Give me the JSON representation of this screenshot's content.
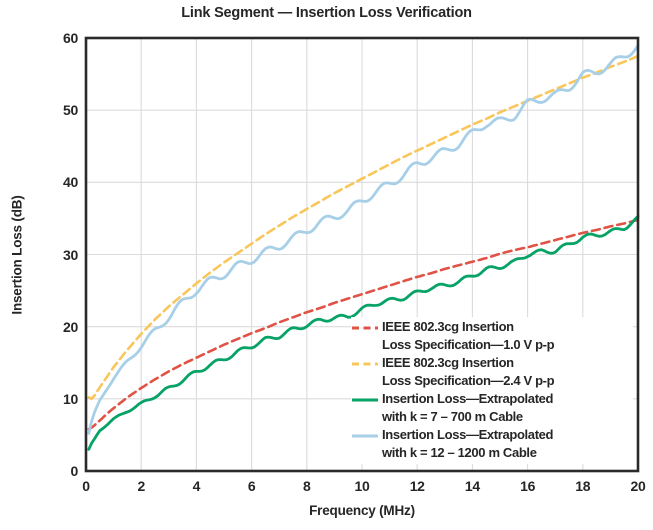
{
  "title": "Link Segment — Insertion Loss Verification",
  "x_axis": {
    "label": "Frequency (MHz)",
    "ticks": [
      0,
      2,
      4,
      6,
      8,
      10,
      12,
      14,
      16,
      18,
      20
    ]
  },
  "y_axis": {
    "label": "Insertion Loss (dB)",
    "ticks": [
      0,
      10,
      20,
      30,
      40,
      50,
      60
    ]
  },
  "colors": {
    "spec_1v0_red": "#e05246",
    "spec_2v4_yellow": "#f8c65a",
    "cable_700m_green": "#06a266",
    "cable_1200m_blue": "#a8cfe8",
    "grid": "#dbdbdb",
    "frame": "#2a2a2a",
    "text": "#262626"
  },
  "legend": {
    "position": "inside-bottom-right",
    "entries": [
      {
        "line1": "IEEE 802.3cg Insertion",
        "line2": "Loss Specification—1.0 V p-p",
        "color": "#e05246",
        "dash": true
      },
      {
        "line1": "IEEE 802.3cg Insertion",
        "line2": "Loss Specification—2.4 V p-p",
        "color": "#f8c65a",
        "dash": true
      },
      {
        "line1": "Insertion Loss—Extrapolated",
        "line2": "with k = 7 – 700 m Cable",
        "color": "#06a266",
        "dash": false
      },
      {
        "line1": "Insertion Loss—Extrapolated",
        "line2": "with k = 12 – 1200 m Cable",
        "color": "#a8cfe8",
        "dash": false
      }
    ]
  },
  "chart_data": {
    "type": "line",
    "title": "Link Segment — Insertion Loss Verification",
    "xlabel": "Frequency (MHz)",
    "ylabel": "Insertion Loss (dB)",
    "xlim": [
      0,
      20
    ],
    "ylim": [
      0,
      60
    ],
    "grid": true,
    "x": [
      0.1,
      0.2,
      0.3,
      0.5,
      0.75,
      1,
      1.5,
      2,
      2.5,
      3,
      3.5,
      4,
      4.5,
      5,
      5.5,
      6,
      6.5,
      7,
      7.5,
      8,
      8.5,
      9,
      9.5,
      10,
      10.5,
      11,
      11.5,
      12,
      12.5,
      13,
      13.5,
      14,
      14.5,
      15,
      15.5,
      16,
      16.5,
      17,
      17.5,
      18,
      18.5,
      19,
      19.5,
      20
    ],
    "series": [
      {
        "name": "IEEE 802.3cg Insertion Loss Specification—1.0 V p-p",
        "color": "#e05246",
        "style": "dashed",
        "width": 2.6,
        "values": [
          5.8,
          6.0,
          6.3,
          7.0,
          7.9,
          8.7,
          10.2,
          11.5,
          12.7,
          13.8,
          14.8,
          15.7,
          16.6,
          17.5,
          18.3,
          19.1,
          19.8,
          20.6,
          21.3,
          22.0,
          22.6,
          23.3,
          23.9,
          24.5,
          25.1,
          25.7,
          26.3,
          26.9,
          27.4,
          28.0,
          28.5,
          29.0,
          29.5,
          30.1,
          30.6,
          31.0,
          31.5,
          32.0,
          32.5,
          33.0,
          33.4,
          33.9,
          34.3,
          34.8
        ]
      },
      {
        "name": "IEEE 802.3cg Insertion Loss Specification—2.4 V p-p",
        "color": "#f8c65a",
        "style": "dashed",
        "width": 2.6,
        "values": [
          10.2,
          10.0,
          10.4,
          11.6,
          13.0,
          14.4,
          16.8,
          19.0,
          21.0,
          22.8,
          24.4,
          26.0,
          27.5,
          28.9,
          30.2,
          31.5,
          32.8,
          34.0,
          35.2,
          36.3,
          37.4,
          38.5,
          39.5,
          40.5,
          41.5,
          42.5,
          43.5,
          44.4,
          45.3,
          46.2,
          47.1,
          48.0,
          48.8,
          49.7,
          50.5,
          51.3,
          52.1,
          52.9,
          53.7,
          54.5,
          55.2,
          56.0,
          56.7,
          57.5
        ]
      },
      {
        "name": "Insertion Loss—Extrapolated with k = 7 – 700 m Cable",
        "color": "#06a266",
        "style": "solid",
        "width": 2.8,
        "ripple": {
          "amplitude": 0.3,
          "period": 0.9
        },
        "values": [
          3.0,
          3.8,
          4.4,
          5.6,
          6.4,
          7.2,
          8.3,
          9.3,
          10.4,
          11.4,
          12.6,
          13.7,
          14.7,
          15.5,
          16.5,
          17.3,
          18.2,
          18.7,
          19.6,
          20.2,
          20.9,
          21.2,
          21.4,
          22.4,
          23.2,
          23.6,
          24.0,
          24.7,
          25.4,
          25.7,
          26.2,
          27.1,
          27.9,
          28.3,
          28.9,
          30.0,
          30.4,
          30.5,
          31.4,
          32.4,
          32.7,
          33.1,
          33.7,
          35.0
        ]
      },
      {
        "name": "Insertion Loss—Extrapolated with k = 12 – 1200 m Cable",
        "color": "#a8cfe8",
        "style": "solid",
        "width": 2.8,
        "ripple": {
          "amplitude": 0.55,
          "period": 1.05
        },
        "values": [
          5.2,
          6.8,
          8.0,
          9.8,
          11.4,
          12.8,
          15.2,
          17.3,
          19.4,
          21.4,
          23.3,
          25.1,
          26.3,
          27.3,
          28.4,
          29.3,
          30.3,
          31.2,
          32.2,
          33.4,
          34.4,
          35.3,
          36.0,
          37.5,
          38.6,
          39.8,
          41.0,
          42.5,
          43.4,
          44.3,
          45.3,
          46.8,
          48.2,
          48.4,
          49.2,
          50.9,
          51.6,
          52.0,
          53.2,
          54.8,
          55.4,
          56.2,
          57.6,
          58.8
        ]
      }
    ]
  }
}
